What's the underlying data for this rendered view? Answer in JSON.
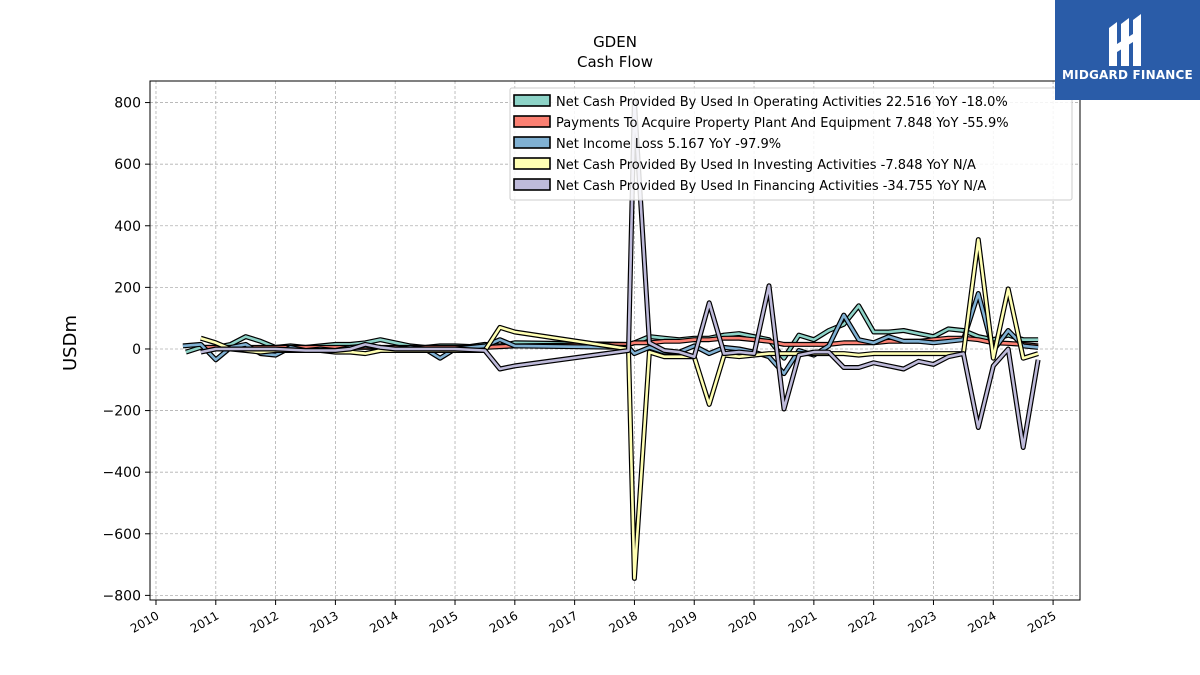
{
  "chart_data": {
    "type": "line",
    "title": "GDEN",
    "subtitle": "Cash Flow",
    "ylabel": "USDm",
    "xlim": [
      2009.9,
      2025.45
    ],
    "ylim": [
      -815,
      870
    ],
    "yticks": [
      -800,
      -600,
      -400,
      -200,
      0,
      200,
      400,
      600,
      800
    ],
    "xticks": [
      "2010",
      "2011",
      "2012",
      "2013",
      "2014",
      "2015",
      "2016",
      "2017",
      "2018",
      "2019",
      "2020",
      "2021",
      "2022",
      "2023",
      "2024",
      "2025"
    ],
    "grid": true,
    "legend_position": "top-right",
    "series": [
      {
        "name": "Net Cash Provided By Used In Operating Activities  22.516 YoY -18.0%",
        "color": "#8dd3c7",
        "points": [
          [
            2010.5,
            -10
          ],
          [
            2010.75,
            5
          ],
          [
            2011.0,
            5
          ],
          [
            2011.25,
            15
          ],
          [
            2011.5,
            40
          ],
          [
            2011.75,
            25
          ],
          [
            2012.0,
            5
          ],
          [
            2012.25,
            10
          ],
          [
            2012.5,
            5
          ],
          [
            2012.75,
            10
          ],
          [
            2013.0,
            15
          ],
          [
            2013.25,
            15
          ],
          [
            2013.5,
            20
          ],
          [
            2013.75,
            30
          ],
          [
            2014.0,
            20
          ],
          [
            2014.25,
            10
          ],
          [
            2014.5,
            5
          ],
          [
            2014.75,
            10
          ],
          [
            2015.0,
            10
          ],
          [
            2015.25,
            8
          ],
          [
            2015.5,
            15
          ],
          [
            2015.75,
            10
          ],
          [
            2016.0,
            20
          ],
          [
            2017.9,
            15
          ],
          [
            2018.0,
            20
          ],
          [
            2018.25,
            40
          ],
          [
            2018.5,
            35
          ],
          [
            2018.75,
            30
          ],
          [
            2019.0,
            35
          ],
          [
            2019.25,
            35
          ],
          [
            2019.5,
            45
          ],
          [
            2019.75,
            50
          ],
          [
            2020.0,
            40
          ],
          [
            2020.25,
            30
          ],
          [
            2020.5,
            -30
          ],
          [
            2020.75,
            45
          ],
          [
            2021.0,
            30
          ],
          [
            2021.25,
            60
          ],
          [
            2021.5,
            80
          ],
          [
            2021.75,
            140
          ],
          [
            2022.0,
            55
          ],
          [
            2022.25,
            55
          ],
          [
            2022.5,
            60
          ],
          [
            2022.75,
            50
          ],
          [
            2023.0,
            40
          ],
          [
            2023.25,
            65
          ],
          [
            2023.5,
            60
          ],
          [
            2023.75,
            40
          ],
          [
            2024.0,
            30
          ],
          [
            2024.25,
            45
          ],
          [
            2024.5,
            30
          ],
          [
            2024.75,
            30
          ]
        ]
      },
      {
        "name": "Payments To Acquire Property Plant And Equipment  7.848 YoY -55.9%",
        "color": "#fb8072",
        "points": [
          [
            2010.75,
            5
          ],
          [
            2011.0,
            5
          ],
          [
            2011.5,
            5
          ],
          [
            2012.0,
            5
          ],
          [
            2012.5,
            5
          ],
          [
            2013.0,
            5
          ],
          [
            2013.5,
            5
          ],
          [
            2014.0,
            5
          ],
          [
            2014.5,
            5
          ],
          [
            2015.0,
            5
          ],
          [
            2015.5,
            5
          ],
          [
            2016.0,
            10
          ],
          [
            2017.9,
            15
          ],
          [
            2018.0,
            20
          ],
          [
            2018.25,
            20
          ],
          [
            2018.5,
            25
          ],
          [
            2018.75,
            25
          ],
          [
            2019.0,
            30
          ],
          [
            2019.25,
            30
          ],
          [
            2019.5,
            35
          ],
          [
            2019.75,
            35
          ],
          [
            2020.0,
            30
          ],
          [
            2020.25,
            25
          ],
          [
            2020.5,
            15
          ],
          [
            2020.75,
            15
          ],
          [
            2021.0,
            15
          ],
          [
            2021.25,
            15
          ],
          [
            2021.5,
            20
          ],
          [
            2021.75,
            20
          ],
          [
            2022.0,
            20
          ],
          [
            2022.25,
            25
          ],
          [
            2022.5,
            25
          ],
          [
            2022.75,
            25
          ],
          [
            2023.0,
            30
          ],
          [
            2023.25,
            35
          ],
          [
            2023.5,
            35
          ],
          [
            2023.75,
            30
          ],
          [
            2024.0,
            20
          ],
          [
            2024.25,
            18
          ],
          [
            2024.5,
            15
          ],
          [
            2024.75,
            10
          ]
        ]
      },
      {
        "name": "Net Income Loss  5.167 YoY -97.9%",
        "color": "#80b1d3",
        "points": [
          [
            2010.45,
            10
          ],
          [
            2010.75,
            15
          ],
          [
            2011.0,
            -35
          ],
          [
            2011.25,
            5
          ],
          [
            2011.5,
            15
          ],
          [
            2011.75,
            -15
          ],
          [
            2012.0,
            -20
          ],
          [
            2012.25,
            5
          ],
          [
            2012.5,
            -5
          ],
          [
            2012.75,
            0
          ],
          [
            2013.0,
            -5
          ],
          [
            2013.25,
            5
          ],
          [
            2013.5,
            10
          ],
          [
            2013.75,
            5
          ],
          [
            2014.0,
            0
          ],
          [
            2014.25,
            5
          ],
          [
            2014.5,
            0
          ],
          [
            2014.75,
            -30
          ],
          [
            2015.0,
            0
          ],
          [
            2015.25,
            5
          ],
          [
            2015.5,
            10
          ],
          [
            2015.75,
            30
          ],
          [
            2016.0,
            10
          ],
          [
            2017.9,
            5
          ],
          [
            2018.0,
            -15
          ],
          [
            2018.25,
            5
          ],
          [
            2018.5,
            -10
          ],
          [
            2018.75,
            -10
          ],
          [
            2019.0,
            10
          ],
          [
            2019.25,
            -15
          ],
          [
            2019.5,
            5
          ],
          [
            2019.75,
            0
          ],
          [
            2020.0,
            -10
          ],
          [
            2020.25,
            -25
          ],
          [
            2020.5,
            -80
          ],
          [
            2020.75,
            -5
          ],
          [
            2021.0,
            -20
          ],
          [
            2021.25,
            10
          ],
          [
            2021.5,
            110
          ],
          [
            2021.75,
            30
          ],
          [
            2022.0,
            20
          ],
          [
            2022.25,
            40
          ],
          [
            2022.5,
            25
          ],
          [
            2022.75,
            25
          ],
          [
            2023.0,
            20
          ],
          [
            2023.25,
            25
          ],
          [
            2023.5,
            30
          ],
          [
            2023.75,
            180
          ],
          [
            2024.0,
            -5
          ],
          [
            2024.25,
            60
          ],
          [
            2024.5,
            10
          ],
          [
            2024.75,
            5
          ]
        ]
      },
      {
        "name": "Net Cash Provided By Used In Investing Activities  -7.848 YoY N/A",
        "color": "#ffffb3",
        "points": [
          [
            2010.75,
            35
          ],
          [
            2011.0,
            20
          ],
          [
            2011.25,
            0
          ],
          [
            2011.5,
            -5
          ],
          [
            2011.75,
            -10
          ],
          [
            2012.0,
            -5
          ],
          [
            2012.25,
            -5
          ],
          [
            2012.5,
            -5
          ],
          [
            2012.75,
            -5
          ],
          [
            2013.0,
            -10
          ],
          [
            2013.25,
            -10
          ],
          [
            2013.5,
            -15
          ],
          [
            2013.75,
            -5
          ],
          [
            2014.0,
            -5
          ],
          [
            2014.25,
            -5
          ],
          [
            2014.5,
            -5
          ],
          [
            2014.75,
            -5
          ],
          [
            2015.0,
            -5
          ],
          [
            2015.25,
            -5
          ],
          [
            2015.5,
            -5
          ],
          [
            2015.75,
            70
          ],
          [
            2016.0,
            55
          ],
          [
            2017.9,
            0
          ],
          [
            2018.0,
            -745
          ],
          [
            2018.25,
            -10
          ],
          [
            2018.5,
            -25
          ],
          [
            2018.75,
            -25
          ],
          [
            2019.0,
            -25
          ],
          [
            2019.25,
            -180
          ],
          [
            2019.5,
            -20
          ],
          [
            2019.75,
            -25
          ],
          [
            2020.0,
            -20
          ],
          [
            2020.25,
            -15
          ],
          [
            2020.5,
            -15
          ],
          [
            2020.75,
            -15
          ],
          [
            2021.0,
            -15
          ],
          [
            2021.25,
            -15
          ],
          [
            2021.5,
            -15
          ],
          [
            2021.75,
            -20
          ],
          [
            2022.0,
            -15
          ],
          [
            2022.25,
            -15
          ],
          [
            2022.5,
            -15
          ],
          [
            2022.75,
            -15
          ],
          [
            2023.0,
            -15
          ],
          [
            2023.25,
            -15
          ],
          [
            2023.5,
            -15
          ],
          [
            2023.75,
            355
          ],
          [
            2024.0,
            -30
          ],
          [
            2024.25,
            195
          ],
          [
            2024.5,
            -30
          ],
          [
            2024.75,
            -15
          ]
        ]
      },
      {
        "name": "Net Cash Provided By Used In Financing Activities  -34.755 YoY N/A",
        "color": "#bebada",
        "points": [
          [
            2010.75,
            -10
          ],
          [
            2011.0,
            0
          ],
          [
            2011.5,
            0
          ],
          [
            2012.0,
            0
          ],
          [
            2012.5,
            -5
          ],
          [
            2013.0,
            -5
          ],
          [
            2013.25,
            0
          ],
          [
            2013.5,
            15
          ],
          [
            2013.75,
            5
          ],
          [
            2014.0,
            0
          ],
          [
            2014.5,
            0
          ],
          [
            2015.0,
            0
          ],
          [
            2015.5,
            -5
          ],
          [
            2015.75,
            -65
          ],
          [
            2016.0,
            -55
          ],
          [
            2017.9,
            -5
          ],
          [
            2018.0,
            805
          ],
          [
            2018.25,
            20
          ],
          [
            2018.5,
            -5
          ],
          [
            2018.75,
            -10
          ],
          [
            2019.0,
            -25
          ],
          [
            2019.25,
            150
          ],
          [
            2019.5,
            -15
          ],
          [
            2019.75,
            -10
          ],
          [
            2020.0,
            -15
          ],
          [
            2020.25,
            205
          ],
          [
            2020.5,
            -195
          ],
          [
            2020.75,
            -20
          ],
          [
            2021.0,
            -10
          ],
          [
            2021.25,
            -10
          ],
          [
            2021.5,
            -60
          ],
          [
            2021.75,
            -60
          ],
          [
            2022.0,
            -45
          ],
          [
            2022.25,
            -55
          ],
          [
            2022.5,
            -65
          ],
          [
            2022.75,
            -40
          ],
          [
            2023.0,
            -50
          ],
          [
            2023.25,
            -25
          ],
          [
            2023.5,
            -15
          ],
          [
            2023.75,
            -255
          ],
          [
            2024.0,
            -55
          ],
          [
            2024.25,
            0
          ],
          [
            2024.5,
            -320
          ],
          [
            2024.75,
            -35
          ]
        ]
      }
    ]
  },
  "logo": {
    "text": "MIDGARD FINANCE"
  }
}
